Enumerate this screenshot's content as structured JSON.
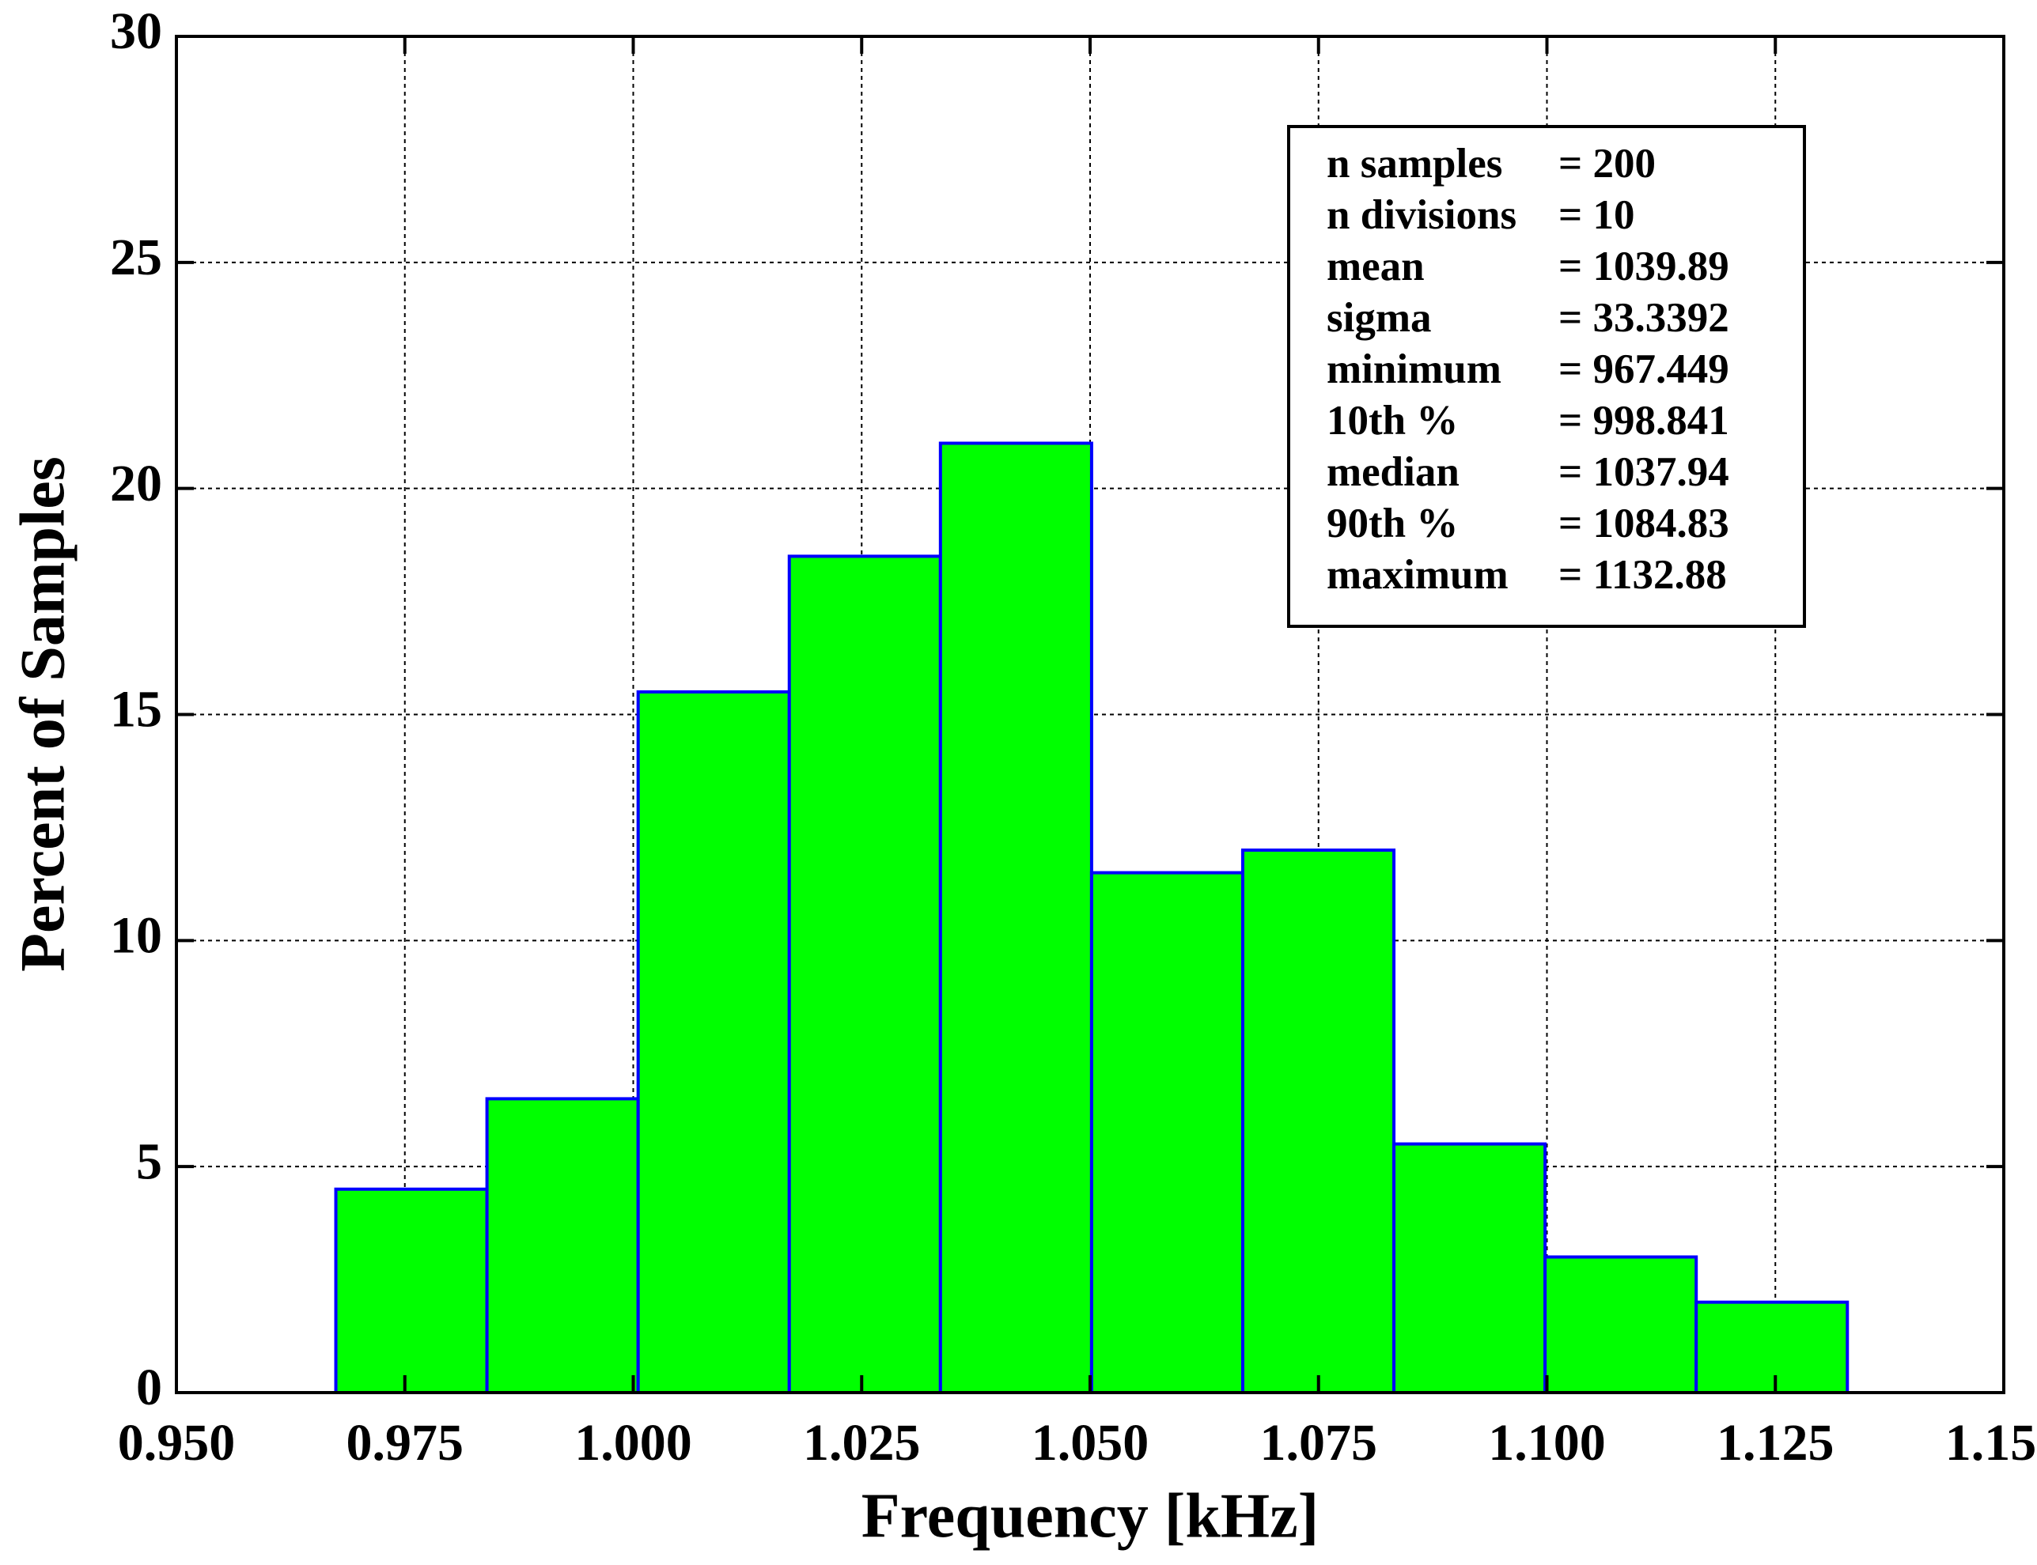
{
  "chart_data": {
    "type": "histogram",
    "xlabel": "Frequency [kHz]",
    "ylabel": "Percent of Samples",
    "bins": [
      0.967449,
      0.983992,
      1.000535,
      1.017078,
      1.033621,
      1.050165,
      1.066708,
      1.083251,
      1.099794,
      1.116337,
      1.13288
    ],
    "values": [
      4.5,
      6.5,
      15.5,
      18.5,
      21,
      11.5,
      12,
      5.5,
      3,
      2
    ],
    "color": "#00ff00",
    "edgecolor": "#0000ff",
    "xlim": [
      0.95,
      1.15
    ],
    "xticks": [
      {
        "value": 0.95,
        "label": "0.950"
      },
      {
        "value": 0.975,
        "label": "0.975"
      },
      {
        "value": 1.0,
        "label": "1.000"
      },
      {
        "value": 1.025,
        "label": "1.025"
      },
      {
        "value": 1.05,
        "label": "1.050"
      },
      {
        "value": 1.075,
        "label": "1.075"
      },
      {
        "value": 1.1,
        "label": "1.100"
      },
      {
        "value": 1.125,
        "label": "1.125"
      },
      {
        "value": 1.15,
        "label": "1.150"
      }
    ],
    "ylim": [
      0,
      30
    ],
    "yticks": [
      0,
      5,
      10,
      15,
      20,
      25,
      30
    ],
    "grid": true,
    "stats": [
      {
        "label": "n samples",
        "value": "= 200"
      },
      {
        "label": "n divisions",
        "value": "= 10"
      },
      {
        "label": "mean",
        "value": "= 1039.89"
      },
      {
        "label": "sigma",
        "value": "= 33.3392"
      },
      {
        "label": "minimum",
        "value": "= 967.449"
      },
      {
        "label": "10th %",
        "value": "= 998.841"
      },
      {
        "label": "median",
        "value": "= 1037.94"
      },
      {
        "label": "90th %",
        "value": "= 1084.83"
      },
      {
        "label": "maximum",
        "value": "= 1132.88"
      }
    ]
  }
}
